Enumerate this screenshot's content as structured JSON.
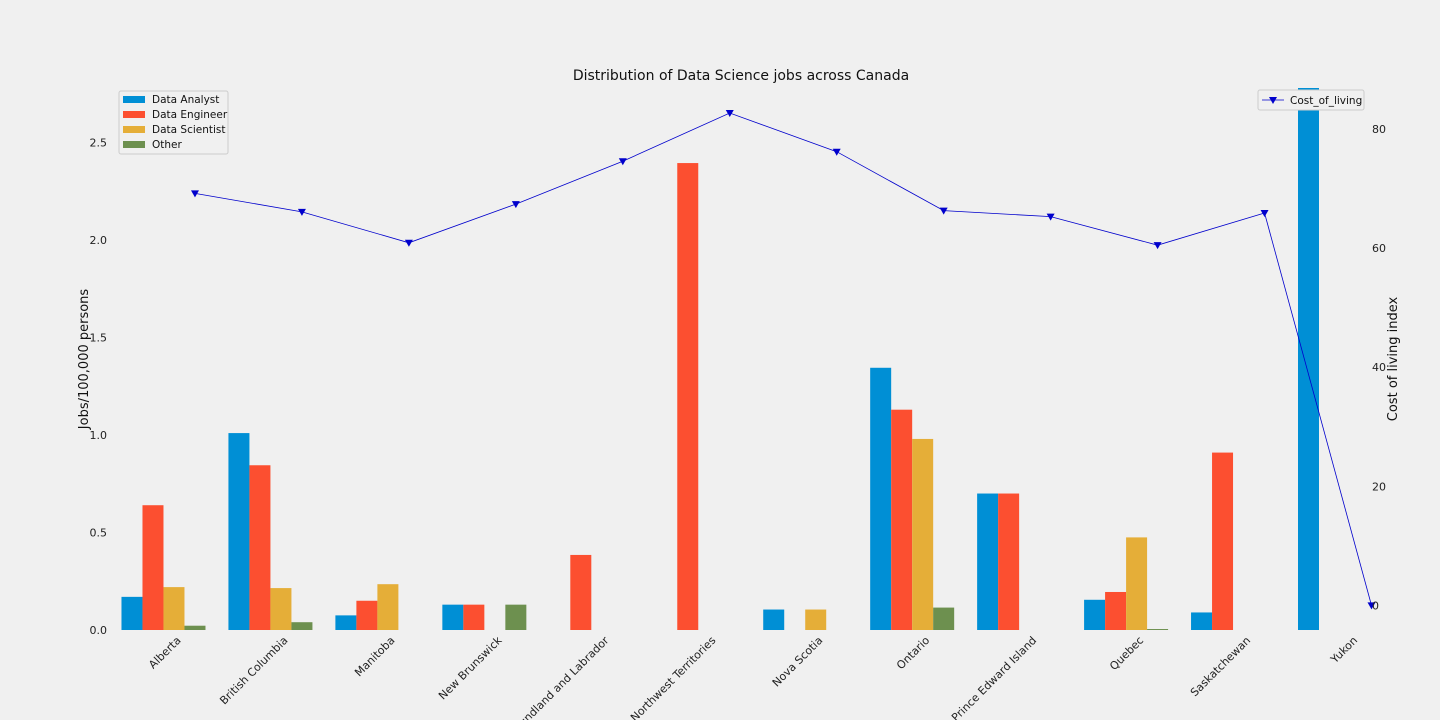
{
  "chart_data": {
    "type": "bar",
    "title": "Distribution of Data Science jobs across Canada",
    "ylabel": "Jobs/100,000 persons",
    "y2label": "Cost of living index",
    "categories": [
      "Alberta",
      "British Columbia",
      "Manitoba",
      "New Brunswick",
      "Newfoundland and Labrador",
      "Northwest Territories",
      "Nova Scotia",
      "Ontario",
      "Prince Edward Island",
      "Quebec",
      "Saskatchewan",
      "Yukon"
    ],
    "series": [
      {
        "name": "Data Analyst",
        "color": "#008fd5",
        "values": [
          0.17,
          1.01,
          0.075,
          0.13,
          0,
          0,
          0.105,
          1.345,
          0.7,
          0.155,
          0.09,
          2.78
        ]
      },
      {
        "name": "Data Engineer",
        "color": "#fc4f30",
        "values": [
          0.64,
          0.845,
          0.15,
          0.13,
          0.385,
          2.395,
          0,
          1.13,
          0.7,
          0.195,
          0.91,
          0
        ]
      },
      {
        "name": "Data Scientist",
        "color": "#e5ae38",
        "values": [
          0.22,
          0.215,
          0.235,
          0,
          0,
          0,
          0.105,
          0.98,
          0,
          0.475,
          0,
          0
        ]
      },
      {
        "name": "Other",
        "color": "#6d904f",
        "values": [
          0.022,
          0.04,
          0,
          0.13,
          0,
          0,
          0,
          0.115,
          0,
          0.005,
          0,
          0
        ]
      }
    ],
    "line_series": {
      "name": "Cost_of_living",
      "color": "#0000cc",
      "marker": "down-triangle",
      "values": [
        69.2,
        66.1,
        60.9,
        67.4,
        74.6,
        82.7,
        76.2,
        66.3,
        65.3,
        60.5,
        65.9,
        0
      ]
    },
    "yticks": [
      0.0,
      0.5,
      1.0,
      1.5,
      2.0,
      2.5
    ],
    "ytick_labels": [
      "0.0",
      "0.5",
      "1.0",
      "1.5",
      "2.0",
      "2.5"
    ],
    "ylim": [
      0,
      2.78
    ],
    "y2ticks": [
      0,
      20,
      40,
      60,
      80
    ],
    "y2tick_labels": [
      "0",
      "20",
      "40",
      "60",
      "80"
    ],
    "y2lim": [
      -4.14,
      86.9
    ],
    "legend_left": "upper-left",
    "legend_right": "upper-right",
    "grid": false
  }
}
